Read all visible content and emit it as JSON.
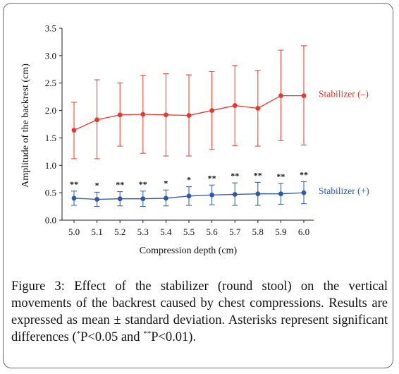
{
  "chart_data": {
    "type": "line",
    "xlabel": "Compression depth (cm)",
    "ylabel": "Amplitude of the backrest (cm)",
    "categories": [
      "5.0",
      "5.1",
      "5.2",
      "5.3",
      "5.4",
      "5.5",
      "5.6",
      "5.7",
      "5.8",
      "5.9",
      "6.0"
    ],
    "ylim": [
      0,
      3.5
    ],
    "y_ticks": [
      "0.0",
      "0.5",
      "1.0",
      "1.5",
      "2.0",
      "2.5",
      "3.0",
      "3.5"
    ],
    "grid": false,
    "series": [
      {
        "name": "Stabilizer (–)",
        "color": "#e8382c",
        "marker": "circle",
        "values": [
          1.64,
          1.83,
          1.92,
          1.93,
          1.92,
          1.91,
          2.0,
          2.09,
          2.04,
          2.27,
          2.27
        ],
        "error_upper": [
          2.15,
          2.56,
          2.5,
          2.64,
          2.67,
          2.65,
          2.71,
          2.82,
          2.73,
          3.1,
          3.18
        ],
        "error_lower": [
          1.12,
          1.12,
          1.35,
          1.22,
          1.17,
          1.17,
          1.29,
          1.36,
          1.35,
          1.45,
          1.37
        ]
      },
      {
        "name": "Stabilizer (+)",
        "color": "#2c5aa8",
        "marker": "circle",
        "values": [
          0.4,
          0.38,
          0.39,
          0.39,
          0.4,
          0.44,
          0.46,
          0.47,
          0.48,
          0.48,
          0.5
        ],
        "error_upper": [
          0.53,
          0.51,
          0.52,
          0.53,
          0.55,
          0.61,
          0.64,
          0.68,
          0.69,
          0.67,
          0.7
        ],
        "error_lower": [
          0.27,
          0.25,
          0.26,
          0.25,
          0.26,
          0.27,
          0.28,
          0.27,
          0.27,
          0.29,
          0.3
        ]
      }
    ],
    "significance": [
      "**",
      "*",
      "**",
      "**",
      "*",
      "*",
      "**",
      "**",
      "**",
      "**",
      "**"
    ]
  },
  "caption": {
    "main": "Figure 3: Effect of the stabilizer (round stool) on the vertical movements of the backrest caused by chest compressions. Results are expressed as mean ± standard deviation. Asterisks represent significant differences (",
    "sig1_mark": "*",
    "sig1_text": "P<0.05 and ",
    "sig2_mark": "**",
    "sig2_text": "P<0.01)."
  }
}
